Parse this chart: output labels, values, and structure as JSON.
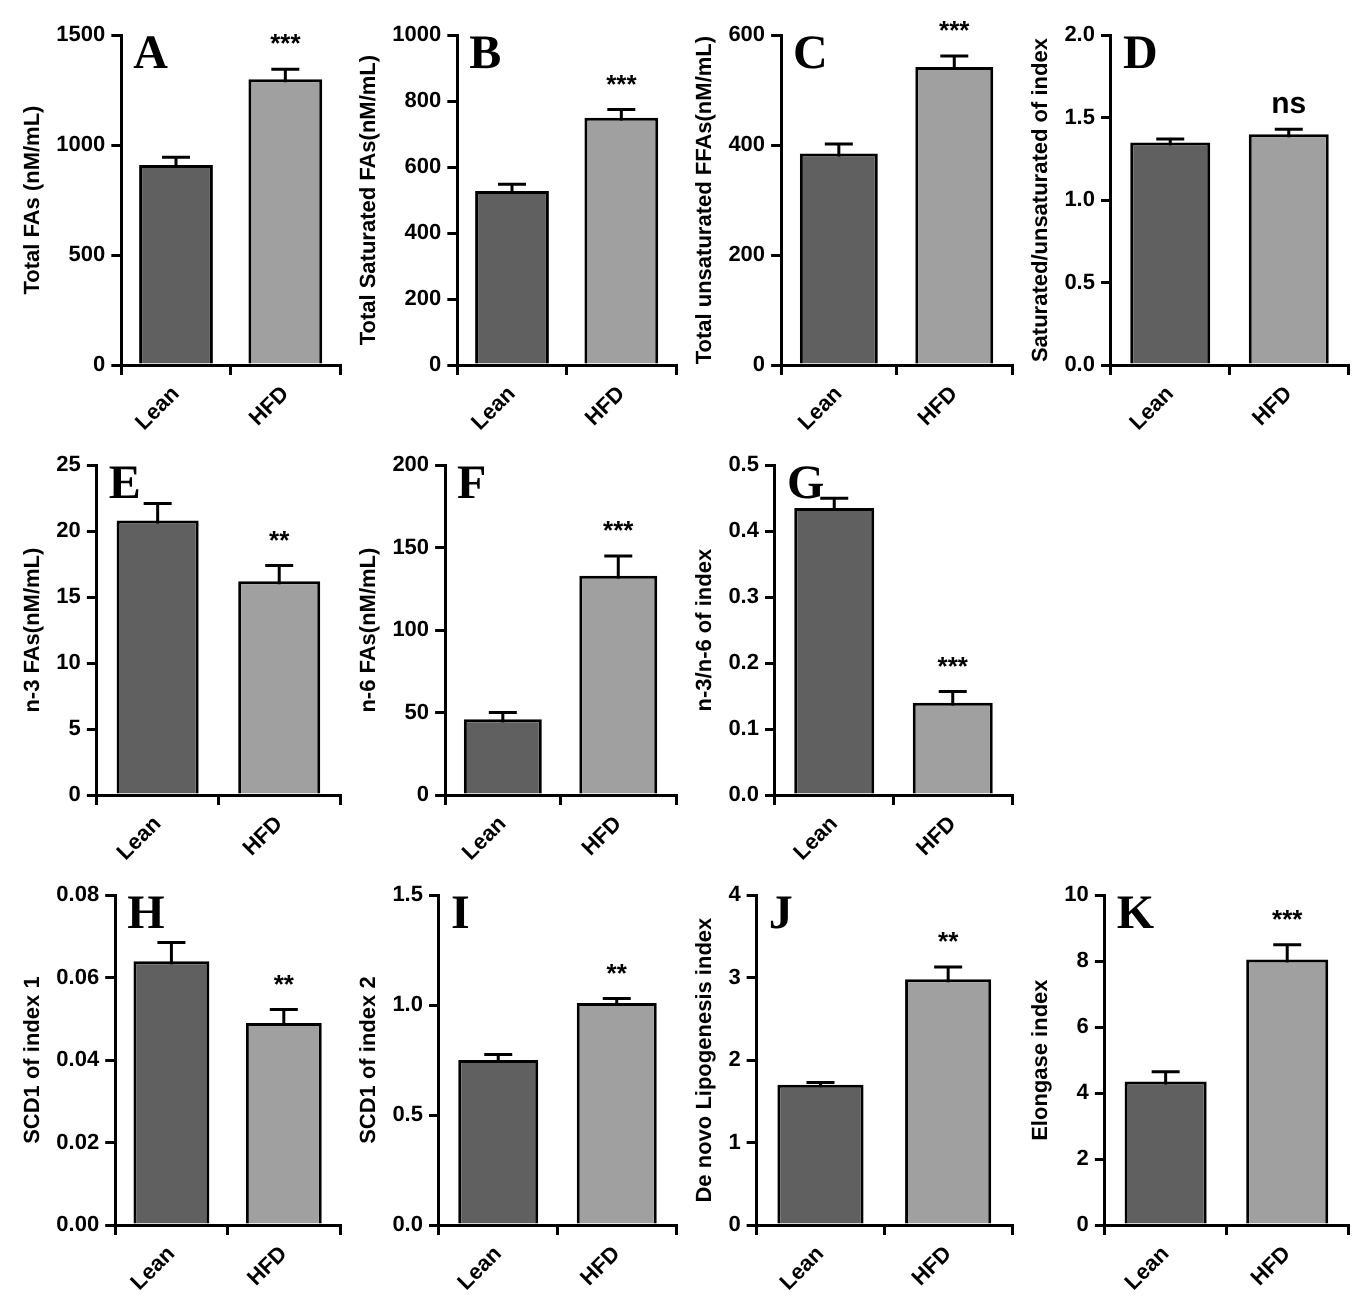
{
  "chart_data": [
    {
      "type": "bar",
      "title": "A",
      "ylabel": "Total FAs (nM/mL)",
      "categories": [
        "Lean",
        "HFD"
      ],
      "values": [
        910,
        1300
      ],
      "errors": [
        35,
        45
      ],
      "colors": [
        "#606060",
        "#a0a0a0"
      ],
      "ylim": [
        0,
        1500
      ],
      "yticks": [
        0,
        500,
        1000,
        1500
      ],
      "grid": false,
      "legend": false,
      "annotations": [
        "***"
      ]
    },
    {
      "type": "bar",
      "title": "B",
      "ylabel": "Total Saturated FAs(nM/mL)",
      "categories": [
        "Lean",
        "HFD"
      ],
      "values": [
        528,
        750
      ],
      "errors": [
        20,
        25
      ],
      "colors": [
        "#606060",
        "#a0a0a0"
      ],
      "ylim": [
        0,
        1000
      ],
      "yticks": [
        0,
        200,
        400,
        600,
        800,
        1000
      ],
      "grid": false,
      "legend": false,
      "annotations": [
        "***"
      ]
    },
    {
      "type": "bar",
      "title": "C",
      "ylabel": "Total unsaturated FFAs(nM/mL)",
      "categories": [
        "Lean",
        "HFD"
      ],
      "values": [
        385,
        542
      ],
      "errors": [
        17,
        20
      ],
      "colors": [
        "#606060",
        "#a0a0a0"
      ],
      "ylim": [
        0,
        600
      ],
      "yticks": [
        0,
        200,
        400,
        600
      ],
      "grid": false,
      "legend": false,
      "annotations": [
        "***"
      ]
    },
    {
      "type": "bar",
      "title": "D",
      "ylabel": "Saturated/unsaturated of index",
      "categories": [
        "Lean",
        "HFD"
      ],
      "values": [
        1.35,
        1.4
      ],
      "errors": [
        0.02,
        0.03
      ],
      "colors": [
        "#606060",
        "#a0a0a0"
      ],
      "ylim": [
        0,
        2
      ],
      "yticks": [
        {
          "value": 0,
          "label": "0.0"
        },
        0.5,
        {
          "value": 1,
          "label": "1.0"
        },
        1.5,
        {
          "value": 2,
          "label": "2.0"
        }
      ],
      "grid": false,
      "legend": false,
      "annotations": [
        "ns"
      ]
    },
    {
      "type": "bar",
      "title": "E",
      "ylabel": "n-3 FAs(nM/mL)",
      "categories": [
        "Lean",
        "HFD"
      ],
      "values": [
        20.8,
        16.2
      ],
      "errors": [
        1.3,
        1.2
      ],
      "colors": [
        "#606060",
        "#a0a0a0"
      ],
      "ylim": [
        0,
        25
      ],
      "yticks": [
        0,
        5,
        10,
        15,
        20,
        25
      ],
      "grid": false,
      "legend": false,
      "annotations": [
        "**"
      ]
    },
    {
      "type": "bar",
      "title": "F",
      "ylabel": "n-6 FAs(nM/mL)",
      "categories": [
        "Lean",
        "HFD"
      ],
      "values": [
        46,
        133
      ],
      "errors": [
        4,
        12
      ],
      "colors": [
        "#606060",
        "#a0a0a0"
      ],
      "ylim": [
        0,
        200
      ],
      "yticks": [
        0,
        50,
        100,
        150,
        200
      ],
      "grid": false,
      "legend": false,
      "annotations": [
        "***"
      ]
    },
    {
      "type": "bar",
      "title": "G",
      "ylabel": "n-3/n-6 of index",
      "categories": [
        "Lean",
        "HFD"
      ],
      "values": [
        0.435,
        0.14
      ],
      "errors": [
        0.015,
        0.017
      ],
      "colors": [
        "#606060",
        "#a0a0a0"
      ],
      "ylim": [
        0,
        0.5
      ],
      "yticks": [
        {
          "value": 0,
          "label": "0.0"
        },
        0.1,
        0.2,
        0.3,
        0.4,
        0.5
      ],
      "grid": false,
      "legend": false,
      "annotations": [
        "***"
      ]
    },
    {
      "type": "bar",
      "title": "H",
      "ylabel": "SCD1 of index 1",
      "categories": [
        "Lean",
        "HFD"
      ],
      "values": [
        0.064,
        0.049
      ],
      "errors": [
        0.0045,
        0.0033
      ],
      "colors": [
        "#606060",
        "#a0a0a0"
      ],
      "ylim": [
        0,
        0.08
      ],
      "yticks": [
        {
          "value": 0,
          "label": "0.00"
        },
        0.02,
        0.04,
        0.06,
        0.08
      ],
      "grid": false,
      "legend": false,
      "annotations": [
        "**"
      ]
    },
    {
      "type": "bar",
      "title": "I",
      "ylabel": "SCD1 of index 2",
      "categories": [
        "Lean",
        "HFD"
      ],
      "values": [
        0.75,
        1.01
      ],
      "errors": [
        0.025,
        0.02
      ],
      "colors": [
        "#606060",
        "#a0a0a0"
      ],
      "ylim": [
        0,
        1.5
      ],
      "yticks": [
        {
          "value": 0,
          "label": "0.0"
        },
        0.5,
        {
          "value": 1,
          "label": "1.0"
        },
        1.5
      ],
      "grid": false,
      "legend": false,
      "annotations": [
        "**"
      ]
    },
    {
      "type": "bar",
      "title": "J",
      "ylabel": "De novo Lipogenesis index",
      "categories": [
        "Lean",
        "HFD"
      ],
      "values": [
        1.7,
        2.98
      ],
      "errors": [
        0.03,
        0.15
      ],
      "colors": [
        "#606060",
        "#a0a0a0"
      ],
      "ylim": [
        0,
        4
      ],
      "yticks": [
        0,
        1,
        2,
        3,
        4
      ],
      "grid": false,
      "legend": false,
      "annotations": [
        "**"
      ]
    },
    {
      "type": "bar",
      "title": "K",
      "ylabel": "Elongase index",
      "categories": [
        "Lean",
        "HFD"
      ],
      "values": [
        4.35,
        8.05
      ],
      "errors": [
        0.3,
        0.45
      ],
      "colors": [
        "#606060",
        "#a0a0a0"
      ],
      "ylim": [
        0,
        10
      ],
      "yticks": [
        0,
        2,
        4,
        6,
        8,
        10
      ],
      "grid": false,
      "legend": false,
      "annotations": [
        "***"
      ]
    }
  ]
}
